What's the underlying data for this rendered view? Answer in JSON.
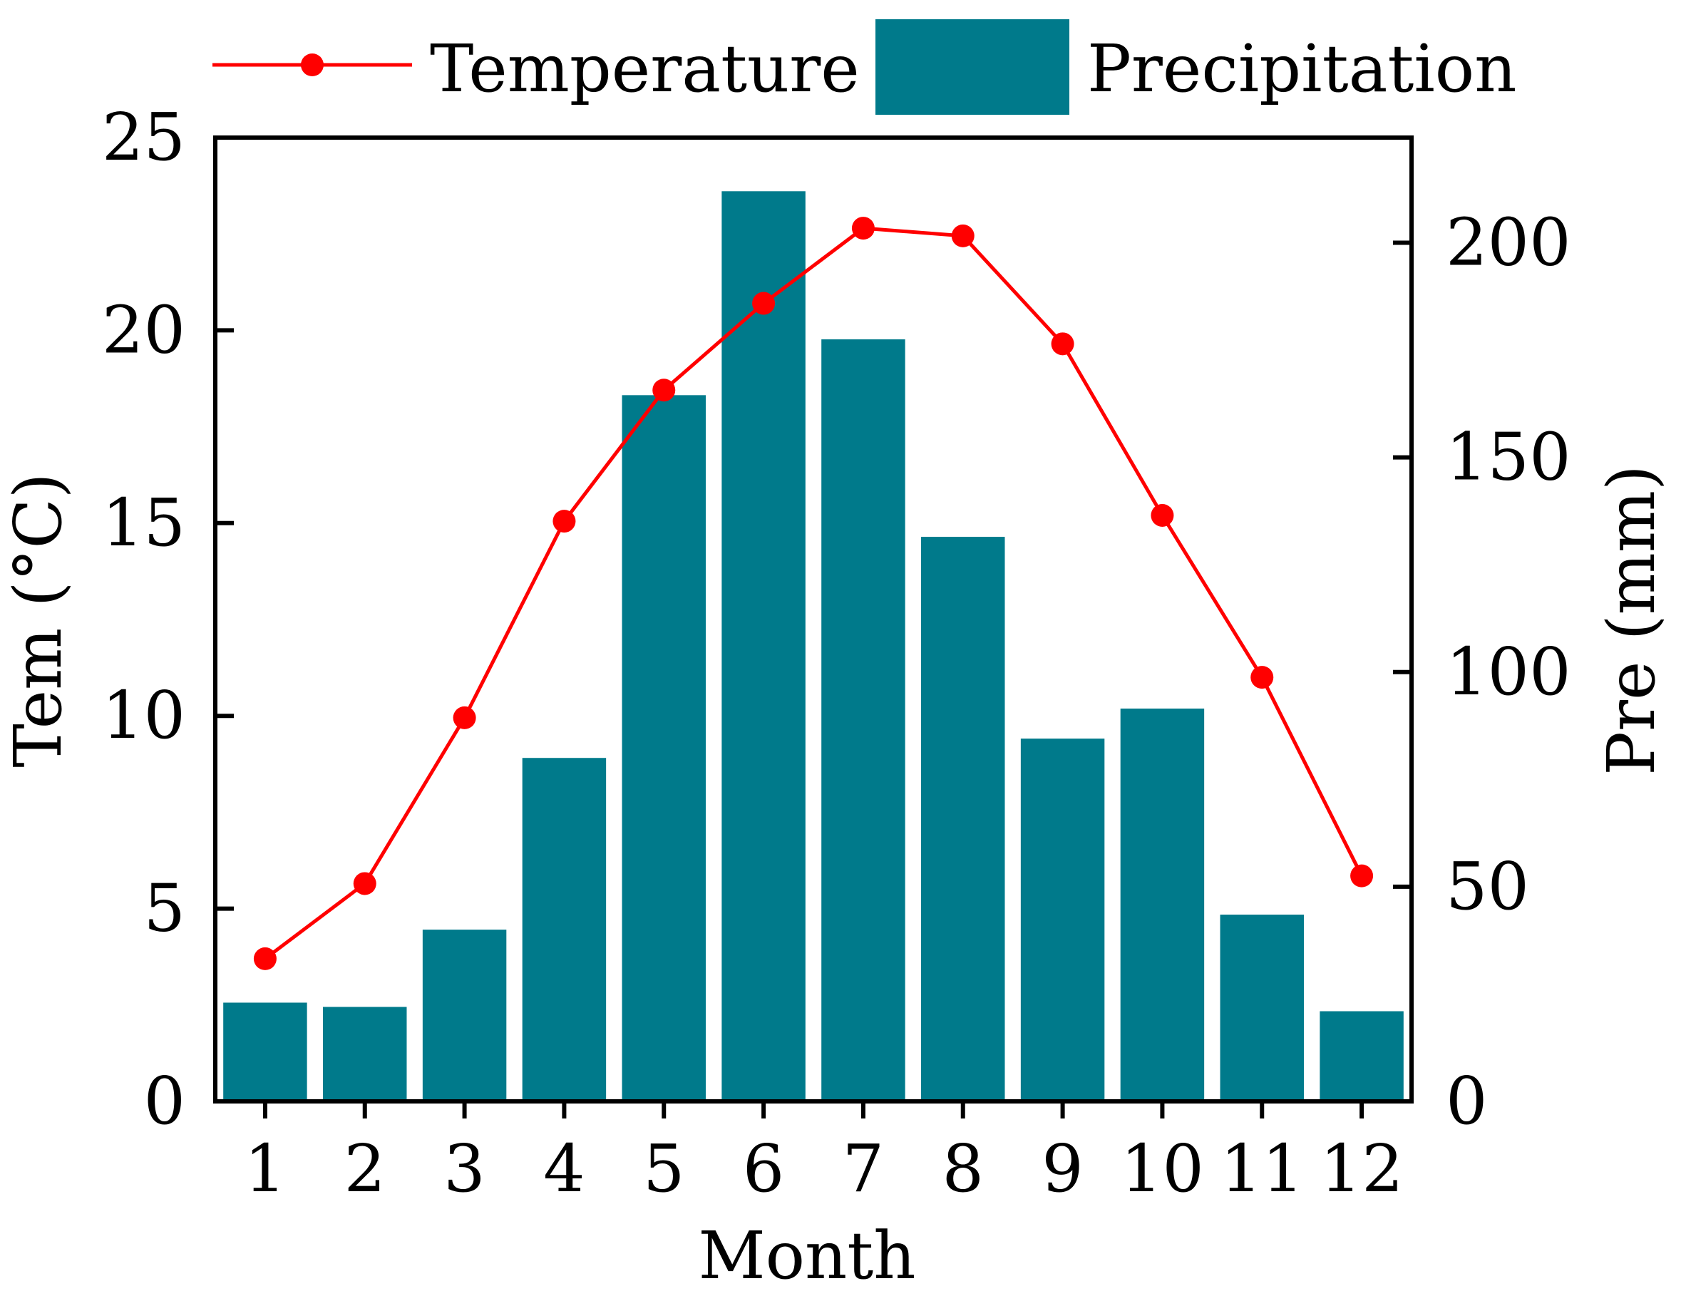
{
  "chart_data": {
    "type": "bar+line",
    "categories": [
      "1",
      "2",
      "3",
      "4",
      "5",
      "6",
      "7",
      "8",
      "9",
      "10",
      "11",
      "12"
    ],
    "x_label": "Month",
    "left_axis": {
      "label": "Tem (°C)",
      "range": [
        0,
        25
      ],
      "ticks": [
        0,
        5,
        10,
        15,
        20,
        25
      ],
      "tick_labels": [
        "0",
        "5",
        "10",
        "15",
        "20",
        "25"
      ]
    },
    "right_axis": {
      "label": "Pre (mm)",
      "range": [
        0,
        224.5
      ],
      "ticks": [
        0,
        50,
        100,
        150,
        200
      ],
      "tick_labels": [
        "0",
        "50",
        "100",
        "150",
        "200"
      ]
    },
    "series": [
      {
        "name": "Precipitation",
        "kind": "bar",
        "axis": "right",
        "color": "#007A8B",
        "values": [
          23,
          22,
          40,
          80,
          164.5,
          212,
          177.5,
          131.5,
          84.5,
          91.5,
          43.5,
          21
        ]
      },
      {
        "name": "Temperature",
        "kind": "line",
        "axis": "left",
        "color": "#FF0000",
        "values": [
          3.7,
          5.65,
          9.95,
          15.05,
          18.45,
          20.7,
          22.65,
          22.45,
          19.65,
          15.2,
          11.0,
          5.85
        ]
      }
    ],
    "legend": {
      "position": "top",
      "items": [
        "Temperature",
        "Precipitation"
      ]
    }
  },
  "colors": {
    "bar": "#007A8B",
    "line": "#FF0000",
    "axis": "#000000"
  }
}
